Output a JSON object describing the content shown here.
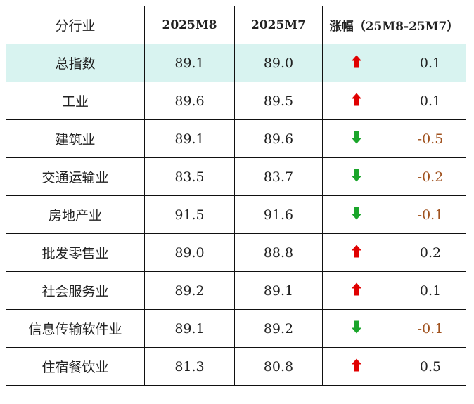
{
  "table": {
    "header": [
      "分行业",
      "2025M8",
      "2025M7",
      "涨幅（25M8-25M7）"
    ],
    "rows": [
      [
        "总指数",
        "89.1",
        "89.0",
        "0.1"
      ],
      [
        "工业",
        "89.6",
        "89.5",
        "0.1"
      ],
      [
        "建筑业",
        "89.1",
        "89.6",
        "-0.5"
      ],
      [
        "交通运输业",
        "83.5",
        "83.7",
        "-0.2"
      ],
      [
        "房地产业",
        "91.5",
        "91.6",
        "-0.1"
      ],
      [
        "批发零售业",
        "89.0",
        "88.8",
        "0.2"
      ],
      [
        "社会服务业",
        "89.2",
        "89.1",
        "0.1"
      ],
      [
        "信息传输软件业",
        "89.1",
        "89.2",
        "-0.1"
      ],
      [
        "住宿餐饮业",
        "81.3",
        "80.8",
        "0.5"
      ]
    ]
  }
}
